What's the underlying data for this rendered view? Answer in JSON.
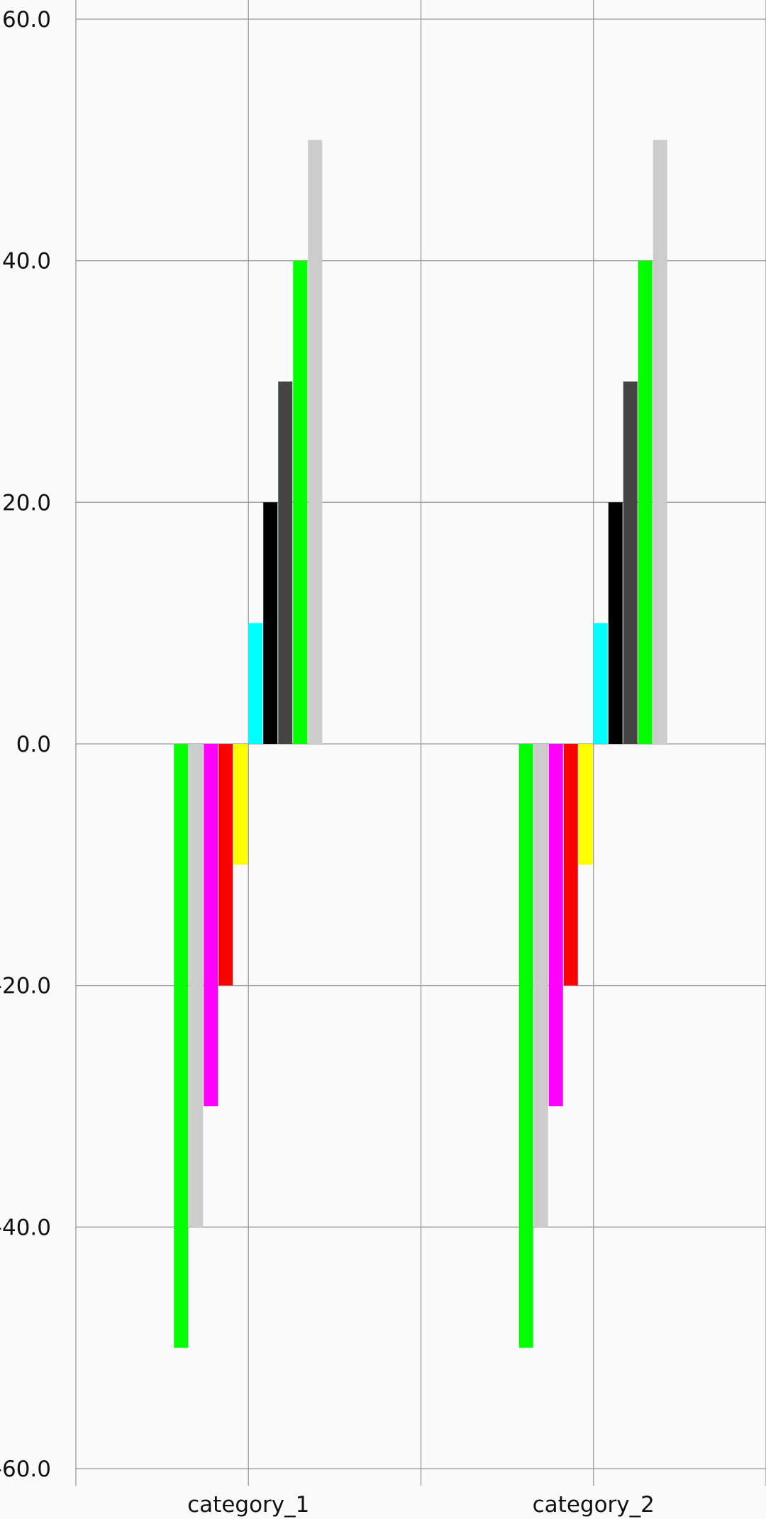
{
  "chart_data": {
    "type": "bar",
    "categories": [
      "category_1",
      "category_2"
    ],
    "series": [
      {
        "color": "#00ff00",
        "values": [
          -50,
          -50
        ]
      },
      {
        "color": "#cccccc",
        "values": [
          -40,
          -40
        ]
      },
      {
        "color": "#ff00ff",
        "values": [
          -30,
          -30
        ]
      },
      {
        "color": "#ff0000",
        "values": [
          -20,
          -20
        ]
      },
      {
        "color": "#ffff00",
        "values": [
          -10,
          -10
        ]
      },
      {
        "color": "#00ffff",
        "values": [
          10,
          10
        ]
      },
      {
        "color": "#000000",
        "values": [
          20,
          20
        ]
      },
      {
        "color": "#444444",
        "values": [
          30,
          30
        ]
      },
      {
        "color": "#00ff00",
        "values": [
          40,
          40
        ]
      },
      {
        "color": "#cccccc",
        "values": [
          50,
          50
        ]
      }
    ],
    "yticks": [
      "60.0",
      "40.0",
      "20.0",
      "0.0",
      "-20.0",
      "-40.0",
      "-60.0"
    ],
    "ylim": [
      -60,
      60
    ],
    "grid": true,
    "title": "",
    "xlabel": "",
    "ylabel": ""
  }
}
